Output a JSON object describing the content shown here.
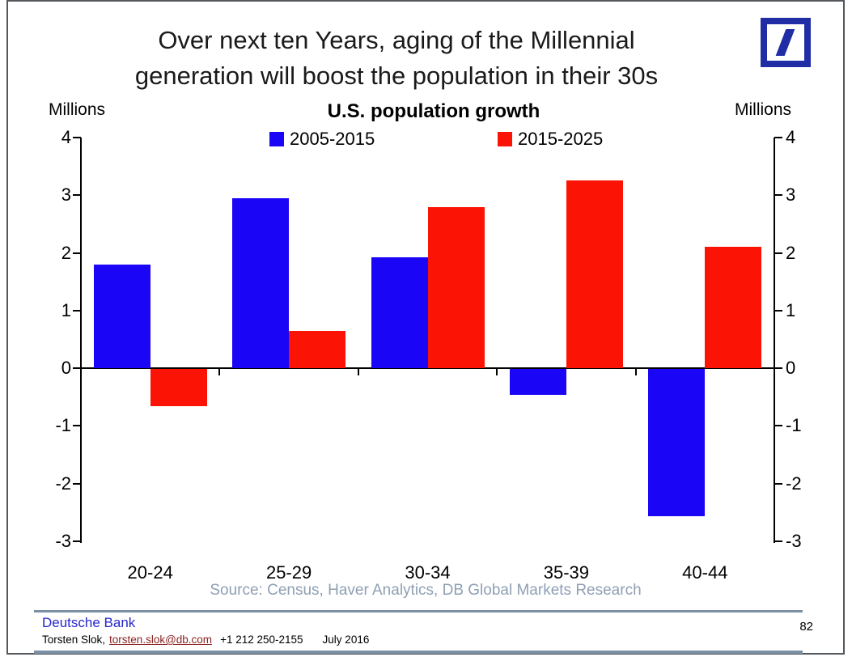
{
  "page": {
    "title_lines": [
      "Over next ten Years, aging of the Millennial",
      "generation will boost the population in their 30s"
    ],
    "subtitle": "U.S. population growth",
    "axis_unit_left": "Millions",
    "axis_unit_right": "Millions",
    "source": "Source: Census, Haver Analytics, DB Global Markets Research",
    "page_number": "82"
  },
  "footer": {
    "org": "Deutsche Bank",
    "contact_name": "Torsten Slok,",
    "email": "torsten.slok@db.com",
    "phone": "+1 212 250-2155",
    "date": "July 2016"
  },
  "logo": {
    "name": "deutsche-bank-logo",
    "color": "#202DA5"
  },
  "chart_data": {
    "type": "bar",
    "title": "U.S. population growth",
    "categories": [
      "20-24",
      "25-29",
      "30-34",
      "35-39",
      "40-44"
    ],
    "series": [
      {
        "name": "2005-2015",
        "color": "#1B05F7",
        "values": [
          1.8,
          2.95,
          1.92,
          -0.45,
          -2.55
        ]
      },
      {
        "name": "2015-2025",
        "color": "#FB1405",
        "values": [
          -0.65,
          0.65,
          2.8,
          3.25,
          2.1
        ]
      }
    ],
    "xlabel": "",
    "ylabel": "Millions",
    "ylim": [
      -3,
      4
    ],
    "yticks": [
      4,
      3,
      2,
      1,
      0,
      -1,
      -2,
      -3
    ],
    "legend_position": "top-center",
    "grid": false,
    "axis_color": "#000000",
    "source_color": "#8fa0b4"
  }
}
